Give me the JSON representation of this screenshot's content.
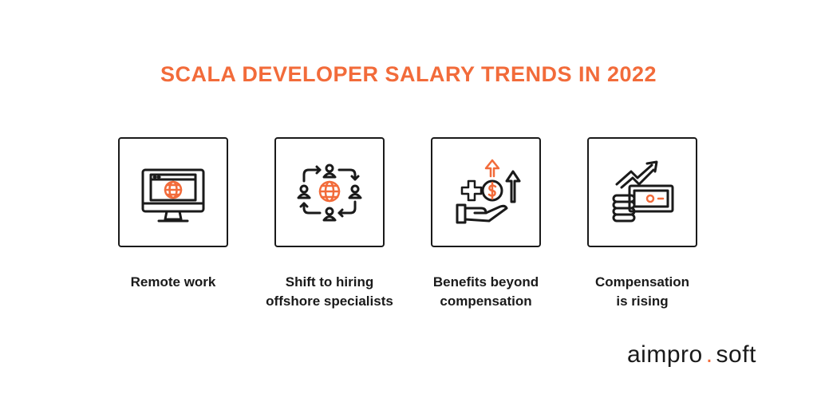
{
  "title": "SCALA DEVELOPER SALARY TRENDS IN 2022",
  "items": [
    {
      "label": "Remote work",
      "icon": "monitor-globe-icon"
    },
    {
      "label": "Shift to hiring\noffshore specialists",
      "icon": "people-cycle-globe-icon"
    },
    {
      "label": "Benefits beyond\ncompensation",
      "icon": "hand-coin-growth-icon"
    },
    {
      "label": "Compensation\nis rising",
      "icon": "money-growth-icon"
    }
  ],
  "logo": {
    "part1": "aimpro",
    "dot": ".",
    "part2": "soft"
  },
  "colors": {
    "accent": "#f26b3a",
    "ink": "#1a1a1a"
  }
}
